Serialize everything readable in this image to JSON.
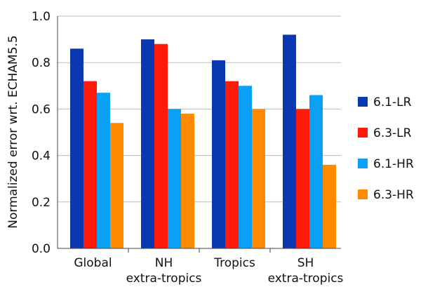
{
  "chart_data": {
    "type": "bar",
    "ylabel": "Normalized error wrt. ECHAM5.5",
    "ylim": [
      0,
      1.0
    ],
    "yticks": [
      "0.0",
      "0.2",
      "0.4",
      "0.6",
      "0.8",
      "1.0"
    ],
    "grid": true,
    "legend_position": "right",
    "categories": [
      {
        "line1": "Global",
        "line2": ""
      },
      {
        "line1": "NH",
        "line2": "extra-tropics"
      },
      {
        "line1": "Tropics",
        "line2": ""
      },
      {
        "line1": "SH",
        "line2": "extra-tropics"
      }
    ],
    "series": [
      {
        "name": "6.1-LR",
        "color": "#0a38b0",
        "values": [
          0.86,
          0.9,
          0.81,
          0.92
        ]
      },
      {
        "name": "6.3-LR",
        "color": "#ff1a0a",
        "values": [
          0.72,
          0.88,
          0.72,
          0.6
        ]
      },
      {
        "name": "6.1-HR",
        "color": "#0aa0f4",
        "values": [
          0.67,
          0.6,
          0.7,
          0.66
        ]
      },
      {
        "name": "6.3-HR",
        "color": "#ff8a00",
        "values": [
          0.54,
          0.58,
          0.6,
          0.36
        ]
      }
    ]
  }
}
